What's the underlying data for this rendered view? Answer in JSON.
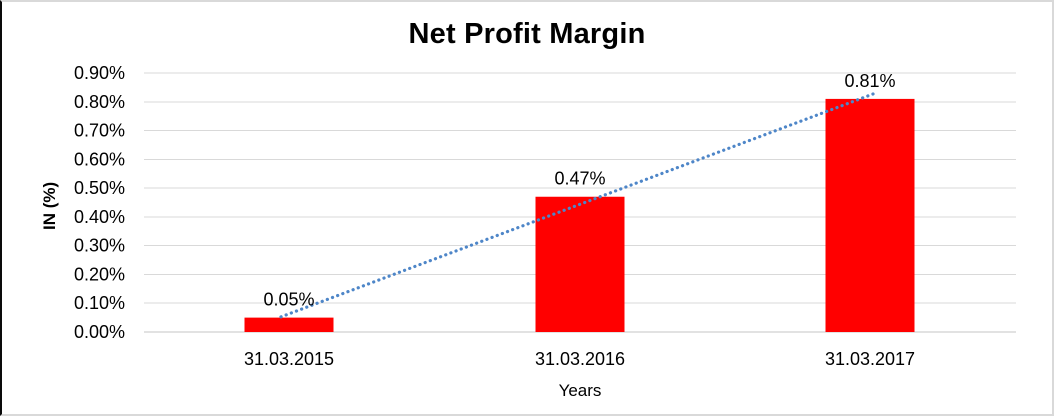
{
  "chart_data": {
    "type": "bar",
    "title": "Net Profit Margin",
    "xlabel": "Years",
    "ylabel": "IN (%)",
    "categories": [
      "31.03.2015",
      "31.03.2016",
      "31.03.2017"
    ],
    "series": [
      {
        "name": "Net Profit Margin",
        "values": [
          0.05,
          0.47,
          0.81
        ]
      }
    ],
    "data_labels": [
      "0.05%",
      "0.47%",
      "0.81%"
    ],
    "ylim": [
      0,
      0.9
    ],
    "ytick_step": 0.1,
    "ytick_labels": [
      "0.00%",
      "0.10%",
      "0.20%",
      "0.30%",
      "0.40%",
      "0.50%",
      "0.60%",
      "0.70%",
      "0.80%",
      "0.90%"
    ],
    "grid": true,
    "legend_position": "none",
    "bar_color": "#FF0000",
    "gridline_color": "#D9D9D9",
    "axis_line_color": "#C6C6C6",
    "trendline": {
      "type": "linear",
      "style": "dotted",
      "color": "#4E86C8"
    }
  }
}
